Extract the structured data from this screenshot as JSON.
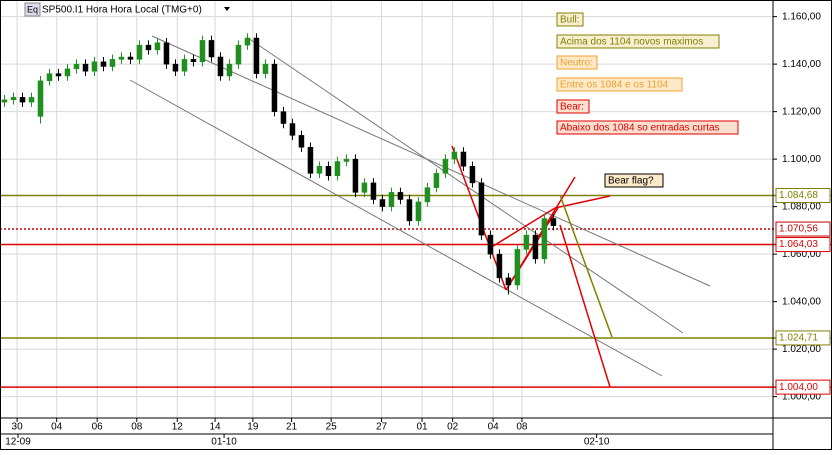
{
  "chart_data": {
    "type": "candlestick",
    "title": "SP500.I1 Hora Hora Local (TMG+0)",
    "icon": "Eq",
    "open": [
      1124,
      1125,
      1126,
      1124,
      1118,
      1133,
      1136,
      1135,
      1138,
      1140,
      1137,
      1141,
      1139,
      1142,
      1143,
      1142,
      1148,
      1146,
      1149,
      1140,
      1137,
      1142,
      1141,
      1150,
      1143,
      1135,
      1140,
      1148,
      1151,
      1136,
      1140,
      1120,
      1115,
      1110,
      1105,
      1094,
      1097,
      1093,
      1099,
      1100,
      1086,
      1090,
      1083,
      1080,
      1086,
      1083,
      1074,
      1082,
      1088,
      1094,
      1100,
      1103,
      1097,
      1090,
      1068,
      1060,
      1050,
      1047,
      1062,
      1068,
      1058,
      1075
    ],
    "high": [
      1127,
      1128,
      1128,
      1128,
      1135,
      1138,
      1138,
      1140,
      1142,
      1142,
      1143,
      1143,
      1144,
      1145,
      1145,
      1150,
      1150,
      1151,
      1151,
      1142,
      1144,
      1144,
      1152,
      1152,
      1145,
      1142,
      1150,
      1153,
      1153,
      1142,
      1142,
      1122,
      1117,
      1112,
      1107,
      1099,
      1099,
      1101,
      1102,
      1102,
      1092,
      1092,
      1085,
      1088,
      1088,
      1085,
      1084,
      1090,
      1096,
      1102,
      1105,
      1105,
      1099,
      1092,
      1070,
      1062,
      1052,
      1064,
      1070,
      1070,
      1077,
      1077
    ],
    "low": [
      1122,
      1123,
      1122,
      1122,
      1115,
      1131,
      1133,
      1133,
      1136,
      1135,
      1135,
      1137,
      1137,
      1140,
      1140,
      1140,
      1144,
      1144,
      1138,
      1135,
      1135,
      1139,
      1139,
      1141,
      1133,
      1133,
      1138,
      1146,
      1134,
      1134,
      1118,
      1113,
      1108,
      1103,
      1092,
      1092,
      1091,
      1091,
      1097,
      1084,
      1084,
      1081,
      1078,
      1078,
      1081,
      1072,
      1072,
      1080,
      1086,
      1092,
      1098,
      1095,
      1088,
      1066,
      1058,
      1048,
      1043,
      1045,
      1060,
      1056,
      1056,
      1070
    ],
    "close": [
      1125,
      1126,
      1124,
      1126,
      1133,
      1136,
      1135,
      1138,
      1140,
      1137,
      1141,
      1139,
      1142,
      1143,
      1142,
      1148,
      1146,
      1149,
      1140,
      1137,
      1142,
      1141,
      1150,
      1143,
      1135,
      1140,
      1148,
      1151,
      1136,
      1140,
      1120,
      1115,
      1110,
      1105,
      1094,
      1097,
      1093,
      1099,
      1100,
      1086,
      1090,
      1083,
      1080,
      1086,
      1083,
      1074,
      1082,
      1088,
      1094,
      1100,
      1103,
      1097,
      1090,
      1068,
      1060,
      1050,
      1047,
      1062,
      1068,
      1058,
      1075,
      1072
    ],
    "up_color": "#1f8f1f",
    "down_color": "#000000",
    "xlim": [
      -0.5,
      85.4
    ],
    "xticks": [
      {
        "value": 1.4,
        "label": "30"
      },
      {
        "value": 5.8,
        "label": "04"
      },
      {
        "value": 10.3,
        "label": "06"
      },
      {
        "value": 14.7,
        "label": "08"
      },
      {
        "value": 19.2,
        "label": "12"
      },
      {
        "value": 23.4,
        "label": "14"
      },
      {
        "value": 27.6,
        "label": "19"
      },
      {
        "value": 31.9,
        "label": "21"
      },
      {
        "value": 36.3,
        "label": "25"
      },
      {
        "value": 41.9,
        "label": "27"
      },
      {
        "value": 46.4,
        "label": "01"
      },
      {
        "value": 49.8,
        "label": "02"
      },
      {
        "value": 54.3,
        "label": "04"
      },
      {
        "value": 57.5,
        "label": "08"
      }
    ],
    "date_ticks": [
      {
        "value": 1.5,
        "label": "12-09"
      },
      {
        "value": 24.4,
        "label": "01-10"
      },
      {
        "value": 65.8,
        "label": "02-10"
      }
    ],
    "ylim": [
      991,
      1167
    ],
    "yticks": [
      {
        "value": 1000,
        "label": "1.000,00"
      },
      {
        "value": 1020,
        "label": "1.020,00"
      },
      {
        "value": 1040,
        "label": "1.040,00"
      },
      {
        "value": 1060,
        "label": "1.060,00"
      },
      {
        "value": 1080,
        "label": "1.080,00"
      },
      {
        "value": 1100,
        "label": "1.100,00"
      },
      {
        "value": 1120,
        "label": "1.120,00"
      },
      {
        "value": 1140,
        "label": "1.140,00"
      },
      {
        "value": 1160,
        "label": "1.160,00"
      }
    ],
    "grid": true,
    "levels": [
      {
        "value": 1084.68,
        "label": "1.084,68",
        "color": "#808000",
        "style": "solid"
      },
      {
        "value": 1070.56,
        "label": "1.070,56",
        "color": "#c00000",
        "style": "dotted"
      },
      {
        "value": 1064.03,
        "label": "1.064,03",
        "color": "#e00000",
        "style": "solid"
      },
      {
        "value": 1024.71,
        "label": "1.024,71",
        "color": "#808000",
        "style": "solid"
      },
      {
        "value": 1004.0,
        "label": "1.004,00",
        "color": "#e00000",
        "style": "solid"
      }
    ],
    "annotations": [
      "Bull:",
      "Acima dos 1104 novos maximos",
      "Neutro:",
      "Entre os 1084 e os 1104",
      "Bear:",
      "Abaixo dos 1084 so entradas curtas",
      "Bear flag?"
    ]
  }
}
